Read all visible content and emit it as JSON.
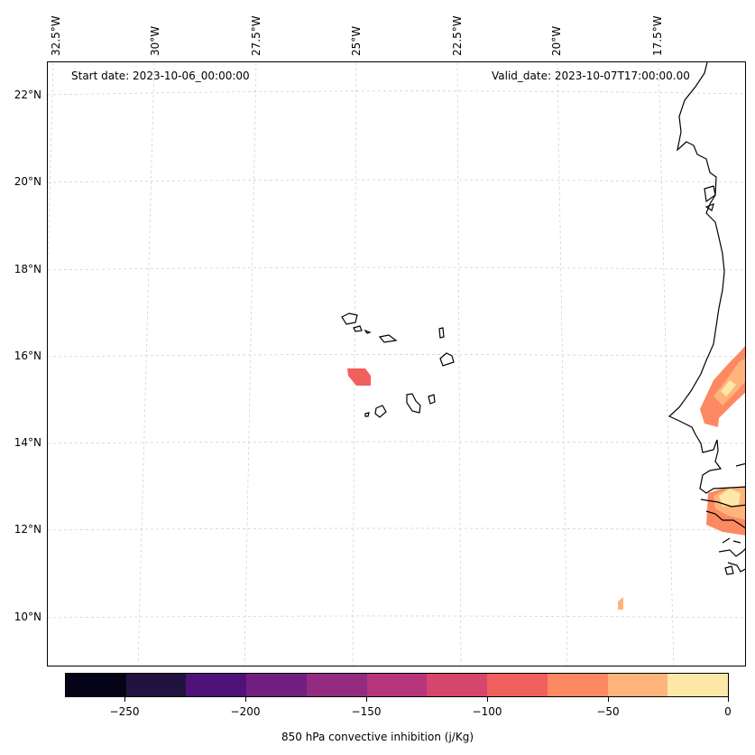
{
  "header": {
    "start_date": "Start date: 2023-10-06_00:00:00",
    "valid_date": "Valid_date: 2023-10-07T17:00:00.00"
  },
  "axes": {
    "lon_labels": [
      "32.5°W",
      "30°W",
      "27.5°W",
      "25°W",
      "22.5°W",
      "20°W",
      "17.5°W"
    ],
    "lat_labels": [
      "22°N",
      "20°N",
      "18°N",
      "16°N",
      "14°N",
      "12°N",
      "10°N"
    ],
    "gridlines": true
  },
  "colorbar": {
    "title": "850 hPa convective inhibition (j/Kg)",
    "tick_labels": [
      "−250",
      "−200",
      "−150",
      "−100",
      "−50",
      "0"
    ],
    "range": [
      -275,
      0
    ],
    "colors": [
      "#050416",
      "#211340",
      "#4f127b",
      "#721f81",
      "#932b80",
      "#b5367a",
      "#d6456c",
      "#f0605d",
      "#fc8961",
      "#feb47b",
      "#fde8a8"
    ]
  },
  "field": {
    "variable": "850 hPa convective inhibition",
    "units": "j/Kg",
    "colormap": "magma",
    "colors_shown": [
      "#f0605d",
      "#fc8961",
      "#feb47b",
      "#fde8a8"
    ]
  }
}
